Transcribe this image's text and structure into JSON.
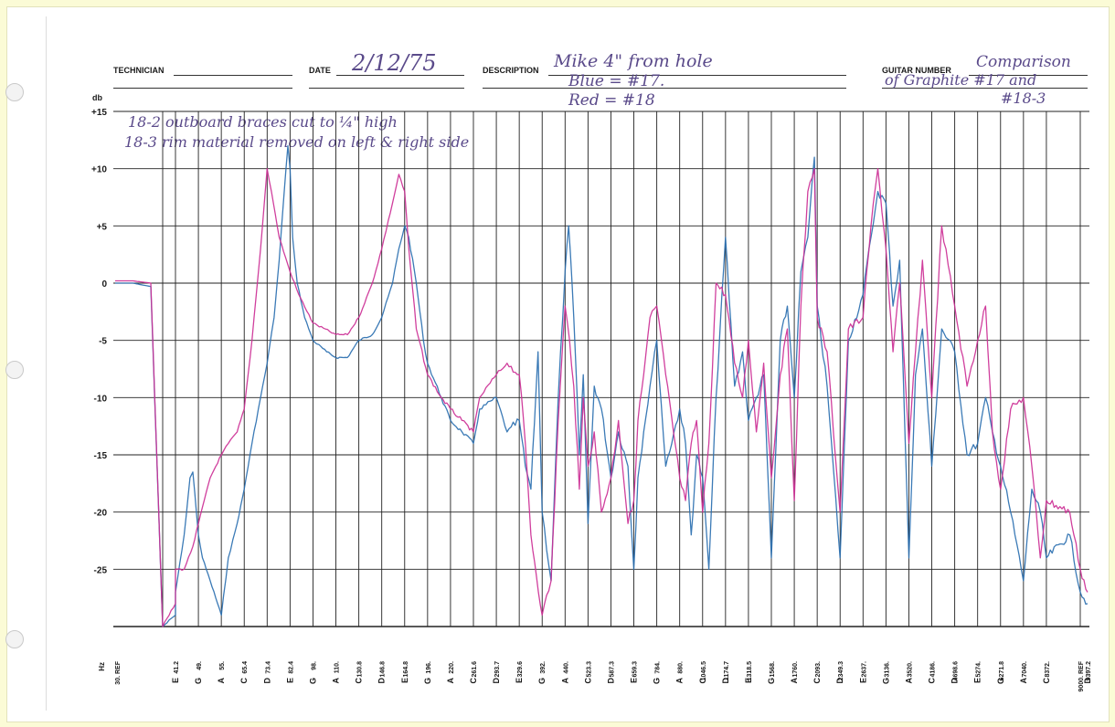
{
  "form": {
    "technician_label": "TECHNICIAN",
    "date_label": "DATE",
    "date": "2/12/75",
    "description_label": "DESCRIPTION",
    "description": [
      "Mike 4\" from hole",
      "Blue = #17.",
      "Red = #18"
    ],
    "guitar_number_label": "GUITAR NUMBER",
    "guitar_number": [
      "Comparison",
      "of Graphite #17 and",
      "#18-3"
    ]
  },
  "colors": {
    "blue_trace": "#2a6fb0",
    "red_trace": "#cc2f95",
    "grid": "#222222"
  },
  "chart_data": {
    "type": "line",
    "title": "",
    "xlabel": "Hz",
    "ylabel": "db",
    "ylim": [
      -30,
      15
    ],
    "yticks": [
      15,
      10,
      5,
      0,
      -5,
      -10,
      -15,
      -20,
      -25
    ],
    "ytick_labels": [
      "+15",
      "+10",
      "+5",
      "0",
      "-5",
      "-10",
      "-15",
      "-20",
      "-25"
    ],
    "grid": true,
    "freq_labels": [
      "30. REF",
      "41.2",
      "49.",
      "55.",
      "65.4",
      "73.4",
      "82.4",
      "98.",
      "110.",
      "130.8",
      "146.8",
      "164.8",
      "196.",
      "220.",
      "261.6",
      "293.7",
      "329.6",
      "392.",
      "440.",
      "523.3",
      "587.3",
      "659.3",
      "784.",
      "880.",
      "1046.5",
      "1174.7",
      "1318.5",
      "1568.",
      "1760.",
      "2093.",
      "2349.3",
      "2637.",
      "3136.",
      "3520.",
      "4186.",
      "4698.6",
      "5274.",
      "6271.8",
      "7040.",
      "8372.",
      "9000. REF",
      "9397.2"
    ],
    "note_labels": [
      "",
      "E",
      "G",
      "A",
      "C",
      "D",
      "E",
      "G",
      "A",
      "C",
      "D",
      "E",
      "G",
      "A",
      "C",
      "D",
      "E",
      "G",
      "A",
      "C",
      "D",
      "E",
      "G",
      "A",
      "C",
      "D",
      "E",
      "G",
      "A",
      "C",
      "D",
      "E",
      "G",
      "A",
      "C",
      "D",
      "E",
      "G",
      "A",
      "C",
      "",
      "D"
    ],
    "annotations": [
      "18-2 outboard braces cut to ¼\" high",
      "18-3 rim material removed on left & right side"
    ],
    "series": [
      {
        "name": "Blue = #17.",
        "color": "#2a6fb0",
        "points": [
          [
            30,
            0
          ],
          [
            33,
            0
          ],
          [
            36,
            -0.3
          ],
          [
            38,
            -30
          ],
          [
            40,
            -29
          ],
          [
            41.2,
            -27
          ],
          [
            44,
            -22
          ],
          [
            46,
            -17
          ],
          [
            47,
            -16.5
          ],
          [
            49,
            -22
          ],
          [
            50,
            -24
          ],
          [
            52,
            -26
          ],
          [
            55,
            -29
          ],
          [
            58,
            -24
          ],
          [
            62,
            -21
          ],
          [
            65.4,
            -18
          ],
          [
            68,
            -14
          ],
          [
            71,
            -10
          ],
          [
            73.4,
            -7
          ],
          [
            76,
            -3
          ],
          [
            78,
            2
          ],
          [
            80,
            8
          ],
          [
            81.5,
            12
          ],
          [
            82.4,
            10
          ],
          [
            84,
            4
          ],
          [
            87,
            0
          ],
          [
            92,
            -3
          ],
          [
            98,
            -5
          ],
          [
            105,
            -6
          ],
          [
            110,
            -6.5
          ],
          [
            120,
            -6.5
          ],
          [
            130.8,
            -5
          ],
          [
            140,
            -4.5
          ],
          [
            146.8,
            -3
          ],
          [
            155,
            0
          ],
          [
            160,
            3
          ],
          [
            164.8,
            5
          ],
          [
            170,
            4
          ],
          [
            180,
            0
          ],
          [
            190,
            -5
          ],
          [
            196,
            -7
          ],
          [
            210,
            -10
          ],
          [
            220,
            -12
          ],
          [
            240,
            -13
          ],
          [
            261.6,
            -14
          ],
          [
            270,
            -11
          ],
          [
            293.7,
            -10
          ],
          [
            310,
            -13
          ],
          [
            329.6,
            -12
          ],
          [
            345,
            -16
          ],
          [
            360,
            -18
          ],
          [
            380,
            -6
          ],
          [
            392,
            -20
          ],
          [
            410,
            -26
          ],
          [
            425,
            -10
          ],
          [
            440,
            1
          ],
          [
            452,
            5
          ],
          [
            470,
            -3
          ],
          [
            490,
            -15
          ],
          [
            505,
            -8
          ],
          [
            523.3,
            -21
          ],
          [
            540,
            -9
          ],
          [
            560,
            -11
          ],
          [
            587.3,
            -17
          ],
          [
            610,
            -13
          ],
          [
            640,
            -16
          ],
          [
            659.3,
            -25
          ],
          [
            680,
            -17
          ],
          [
            710,
            -13
          ],
          [
            745,
            -9
          ],
          [
            784,
            -5
          ],
          [
            820,
            -16
          ],
          [
            880,
            -11
          ],
          [
            920,
            -14
          ],
          [
            960,
            -22
          ],
          [
            1000,
            -15
          ],
          [
            1046.5,
            -17
          ],
          [
            1080,
            -25
          ],
          [
            1120,
            -10
          ],
          [
            1174.7,
            4
          ],
          [
            1230,
            -9
          ],
          [
            1280,
            -6
          ],
          [
            1318.5,
            -12
          ],
          [
            1400,
            -10
          ],
          [
            1480,
            -8
          ],
          [
            1568,
            -24
          ],
          [
            1640,
            -5
          ],
          [
            1700,
            -2
          ],
          [
            1760,
            -10
          ],
          [
            1850,
            1
          ],
          [
            1950,
            4
          ],
          [
            2050,
            11
          ],
          [
            2093,
            -2
          ],
          [
            2200,
            -9
          ],
          [
            2349.3,
            -24
          ],
          [
            2450,
            -5
          ],
          [
            2637,
            -1
          ],
          [
            2800,
            4
          ],
          [
            2950,
            8
          ],
          [
            3136,
            7
          ],
          [
            3250,
            -2
          ],
          [
            3360,
            2
          ],
          [
            3520,
            -24
          ],
          [
            3700,
            -8
          ],
          [
            3900,
            -4
          ],
          [
            4186,
            -16
          ],
          [
            4400,
            -4
          ],
          [
            4698.6,
            -6
          ],
          [
            5000,
            -15
          ],
          [
            5274,
            -14
          ],
          [
            5600,
            -10
          ],
          [
            5900,
            -13
          ],
          [
            6271.8,
            -16
          ],
          [
            6600,
            -20
          ],
          [
            7040,
            -26
          ],
          [
            7500,
            -18
          ],
          [
            8000,
            -20
          ],
          [
            8372,
            -24
          ],
          [
            8800,
            -22
          ],
          [
            9000,
            -27
          ],
          [
            9397.2,
            -28
          ]
        ]
      },
      {
        "name": "Red = #18",
        "color": "#cc2f95",
        "points": [
          [
            30,
            0.2
          ],
          [
            33,
            0.2
          ],
          [
            36,
            0
          ],
          [
            38,
            -30
          ],
          [
            40,
            -28
          ],
          [
            41.2,
            -25
          ],
          [
            44,
            -25
          ],
          [
            47,
            -23
          ],
          [
            49,
            -21
          ],
          [
            52,
            -17
          ],
          [
            55,
            -15
          ],
          [
            58,
            -14
          ],
          [
            62,
            -13
          ],
          [
            65.4,
            -11
          ],
          [
            68,
            -5
          ],
          [
            71,
            3
          ],
          [
            73.4,
            10
          ],
          [
            75,
            8
          ],
          [
            78,
            4
          ],
          [
            82.4,
            1
          ],
          [
            88,
            -1
          ],
          [
            98,
            -3.5
          ],
          [
            110,
            -4.5
          ],
          [
            120,
            -4.5
          ],
          [
            130.8,
            -3
          ],
          [
            140,
            0
          ],
          [
            146.8,
            3
          ],
          [
            155,
            7
          ],
          [
            160,
            9.5
          ],
          [
            164.8,
            8
          ],
          [
            170,
            3
          ],
          [
            180,
            -4
          ],
          [
            196,
            -8
          ],
          [
            210,
            -10
          ],
          [
            220,
            -11
          ],
          [
            240,
            -12
          ],
          [
            261.6,
            -13
          ],
          [
            270,
            -10
          ],
          [
            293.7,
            -8
          ],
          [
            310,
            -7
          ],
          [
            329.6,
            -8
          ],
          [
            345,
            -14
          ],
          [
            360,
            -22
          ],
          [
            392,
            -29
          ],
          [
            410,
            -26
          ],
          [
            425,
            -12
          ],
          [
            440,
            -2
          ],
          [
            455,
            -5
          ],
          [
            470,
            -9
          ],
          [
            490,
            -18
          ],
          [
            505,
            -10
          ],
          [
            523.3,
            -16
          ],
          [
            540,
            -13
          ],
          [
            560,
            -20
          ],
          [
            587.3,
            -17
          ],
          [
            610,
            -12
          ],
          [
            640,
            -21
          ],
          [
            659.3,
            -19
          ],
          [
            680,
            -12
          ],
          [
            710,
            -8
          ],
          [
            745,
            -3
          ],
          [
            784,
            -2
          ],
          [
            820,
            -8
          ],
          [
            880,
            -17
          ],
          [
            920,
            -19
          ],
          [
            960,
            -14
          ],
          [
            1000,
            -12
          ],
          [
            1046.5,
            -20
          ],
          [
            1080,
            -14
          ],
          [
            1120,
            0
          ],
          [
            1174.7,
            -1
          ],
          [
            1230,
            -7
          ],
          [
            1280,
            -10
          ],
          [
            1318.5,
            -5
          ],
          [
            1400,
            -13
          ],
          [
            1480,
            -7
          ],
          [
            1568,
            -17
          ],
          [
            1640,
            -8
          ],
          [
            1700,
            -4
          ],
          [
            1760,
            -19
          ],
          [
            1850,
            -2
          ],
          [
            1950,
            8
          ],
          [
            2050,
            10
          ],
          [
            2093,
            -3
          ],
          [
            2200,
            -6
          ],
          [
            2349.3,
            -20
          ],
          [
            2450,
            -4
          ],
          [
            2637,
            -3
          ],
          [
            2800,
            5
          ],
          [
            2950,
            10
          ],
          [
            3136,
            3
          ],
          [
            3250,
            -6
          ],
          [
            3360,
            0
          ],
          [
            3520,
            -14
          ],
          [
            3700,
            -6
          ],
          [
            3900,
            2
          ],
          [
            4186,
            -10
          ],
          [
            4400,
            5
          ],
          [
            4698.6,
            -2
          ],
          [
            5000,
            -9
          ],
          [
            5274,
            -5
          ],
          [
            5600,
            -2
          ],
          [
            5900,
            -13
          ],
          [
            6271.8,
            -18
          ],
          [
            6600,
            -11
          ],
          [
            7040,
            -10
          ],
          [
            7500,
            -16
          ],
          [
            8000,
            -24
          ],
          [
            8372,
            -19
          ],
          [
            8800,
            -20
          ],
          [
            9000,
            -25
          ],
          [
            9397.2,
            -27
          ]
        ]
      }
    ]
  }
}
